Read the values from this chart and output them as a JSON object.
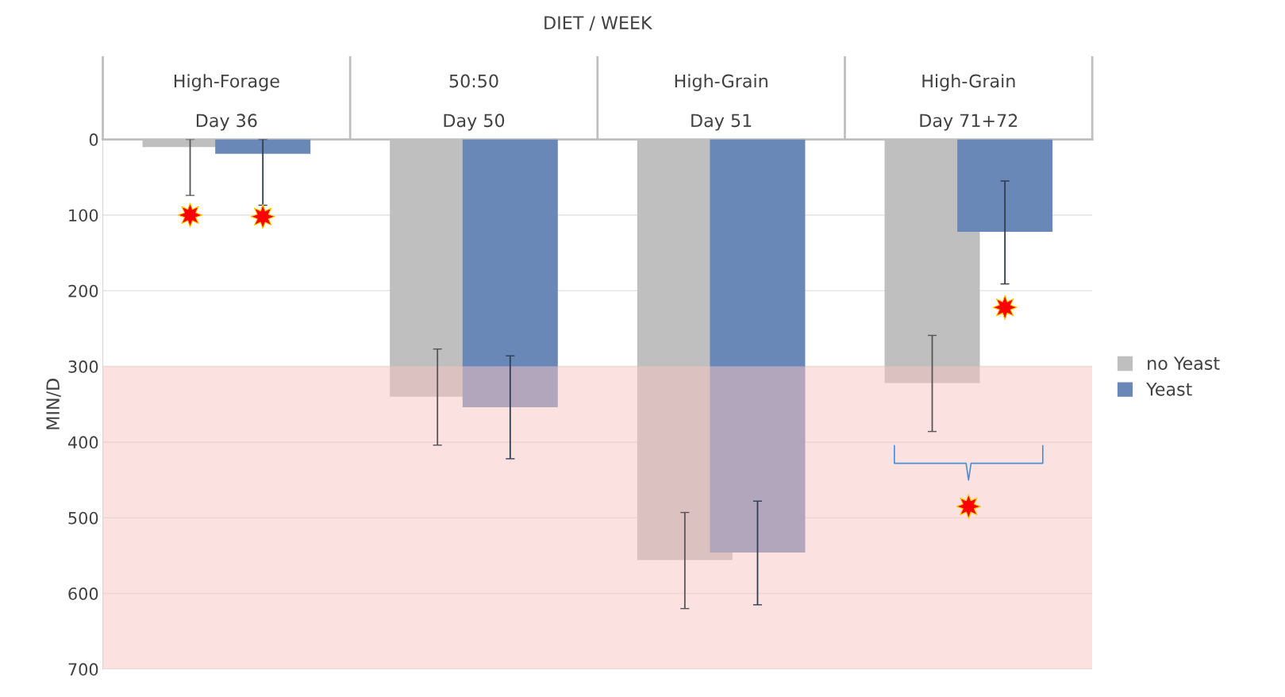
{
  "chart_data": {
    "type": "bar",
    "title": "DIET / WEEK",
    "ylabel": "MIN/D",
    "categories": [
      "High-Forage\n\nDay 36",
      "50:50\n\nDay 50",
      "High-Grain\n\nDay 51",
      "High-Grain\n\nDay 71+72"
    ],
    "series": [
      {
        "name": "no Yeast",
        "color": "#bfbfbf",
        "values": [
          10,
          340,
          556,
          322
        ],
        "errors": [
          [
            0,
            74
          ],
          [
            277,
            404
          ],
          [
            493,
            620
          ],
          [
            259,
            386
          ]
        ]
      },
      {
        "name": "Yeast",
        "color": "#6a88b7",
        "values": [
          19,
          354,
          546,
          122
        ],
        "errors": [
          [
            0,
            87
          ],
          [
            286,
            422
          ],
          [
            478,
            615
          ],
          [
            55,
            191
          ]
        ]
      }
    ],
    "ylim": [
      700,
      0
    ],
    "yticks": [
      0,
      100,
      200,
      300,
      400,
      500,
      600,
      700
    ],
    "bands": [
      {
        "axis": "y",
        "from": 300,
        "to": 700,
        "color": "#f9c4c4"
      }
    ],
    "grid": "y",
    "legend": "right"
  }
}
